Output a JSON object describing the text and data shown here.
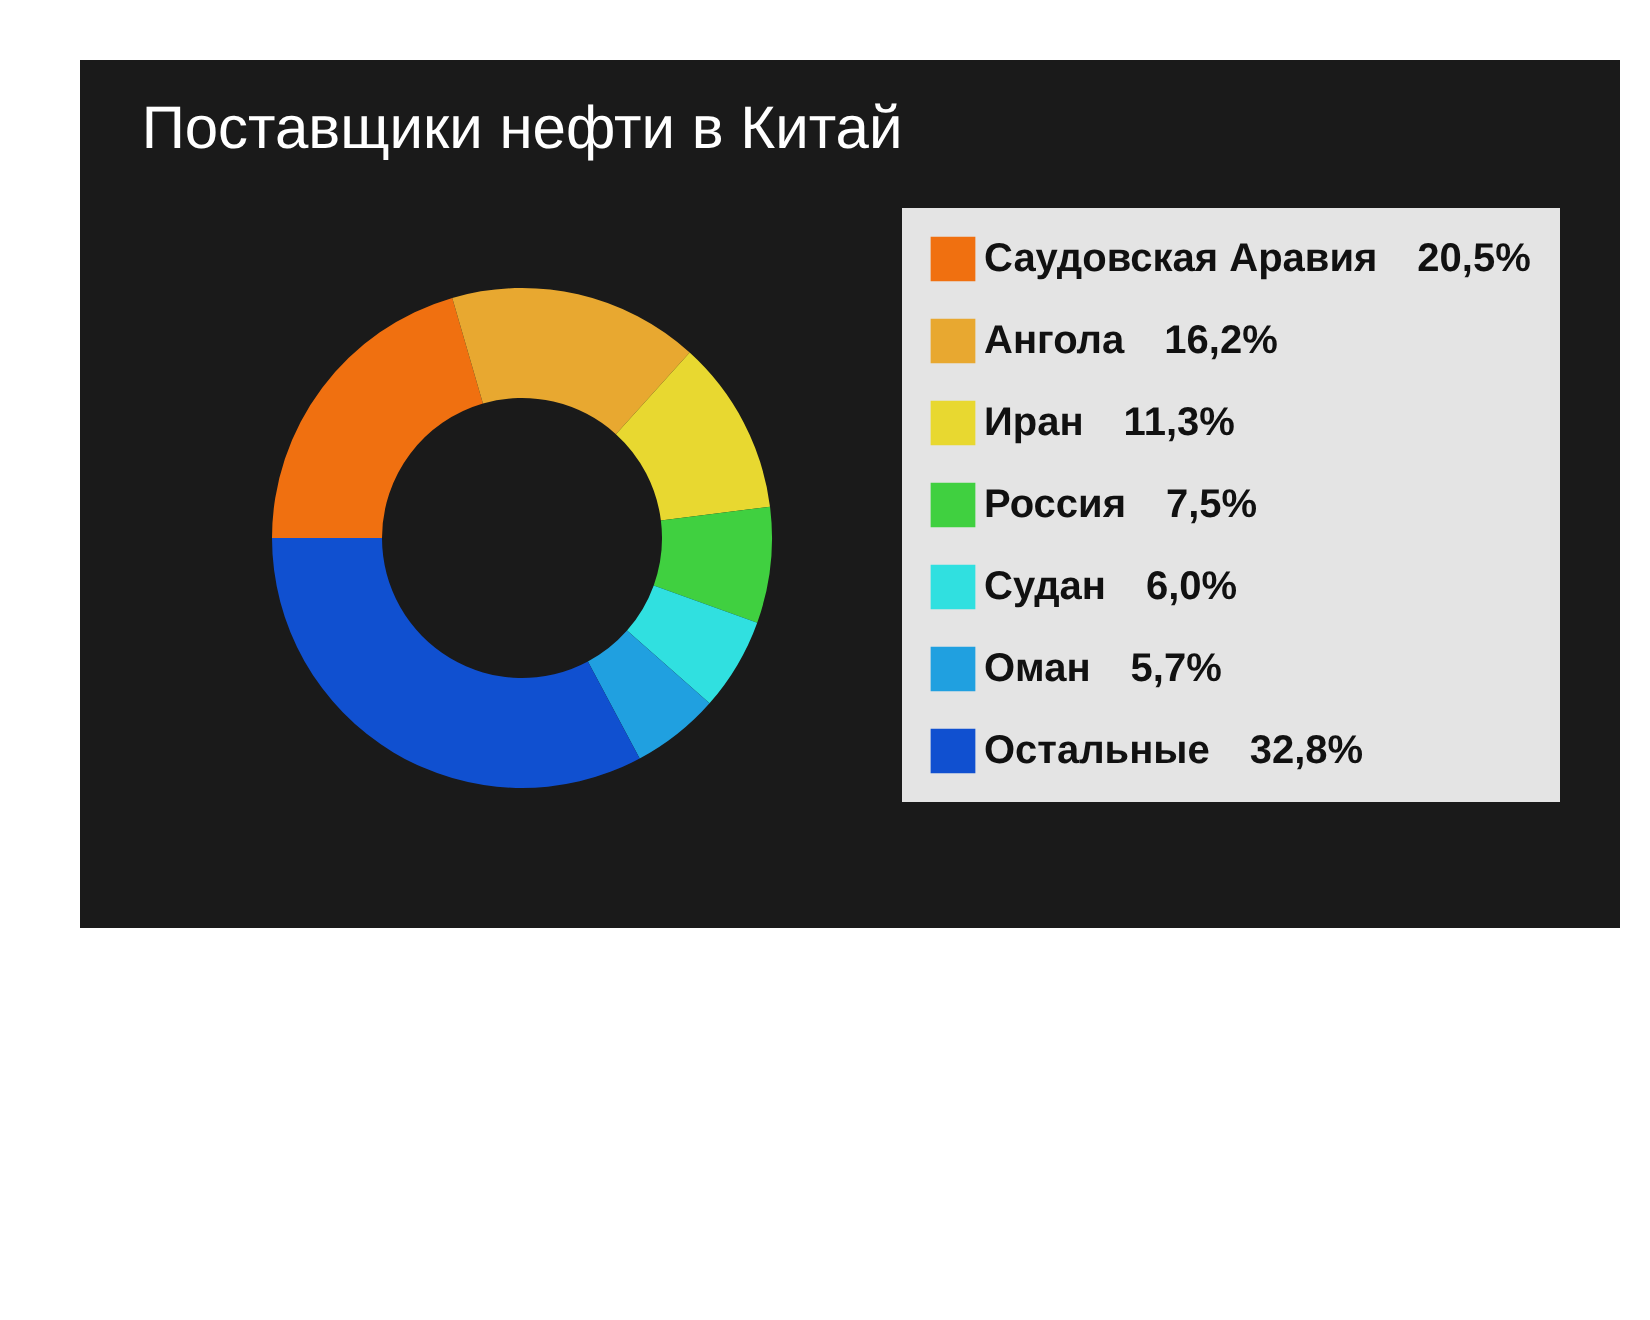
{
  "chart_data": {
    "type": "donut",
    "title": "Поставщики нефти в Китай",
    "categories": [
      "Саудовская Аравия",
      "Ангола",
      "Иран",
      "Россия",
      "Судан",
      "Оман",
      "Остальные"
    ],
    "values": [
      20.5,
      16.2,
      11.3,
      7.5,
      6.0,
      5.7,
      32.8
    ],
    "value_labels": [
      "20,5%",
      "16,2%",
      "11,3%",
      "7,5%",
      "6,0%",
      "5,7%",
      "32,8%"
    ],
    "colors": [
      "#f07010",
      "#e8a830",
      "#e8d830",
      "#40d040",
      "#30e0e0",
      "#20a0e0",
      "#1050d0"
    ],
    "legend": "right"
  }
}
